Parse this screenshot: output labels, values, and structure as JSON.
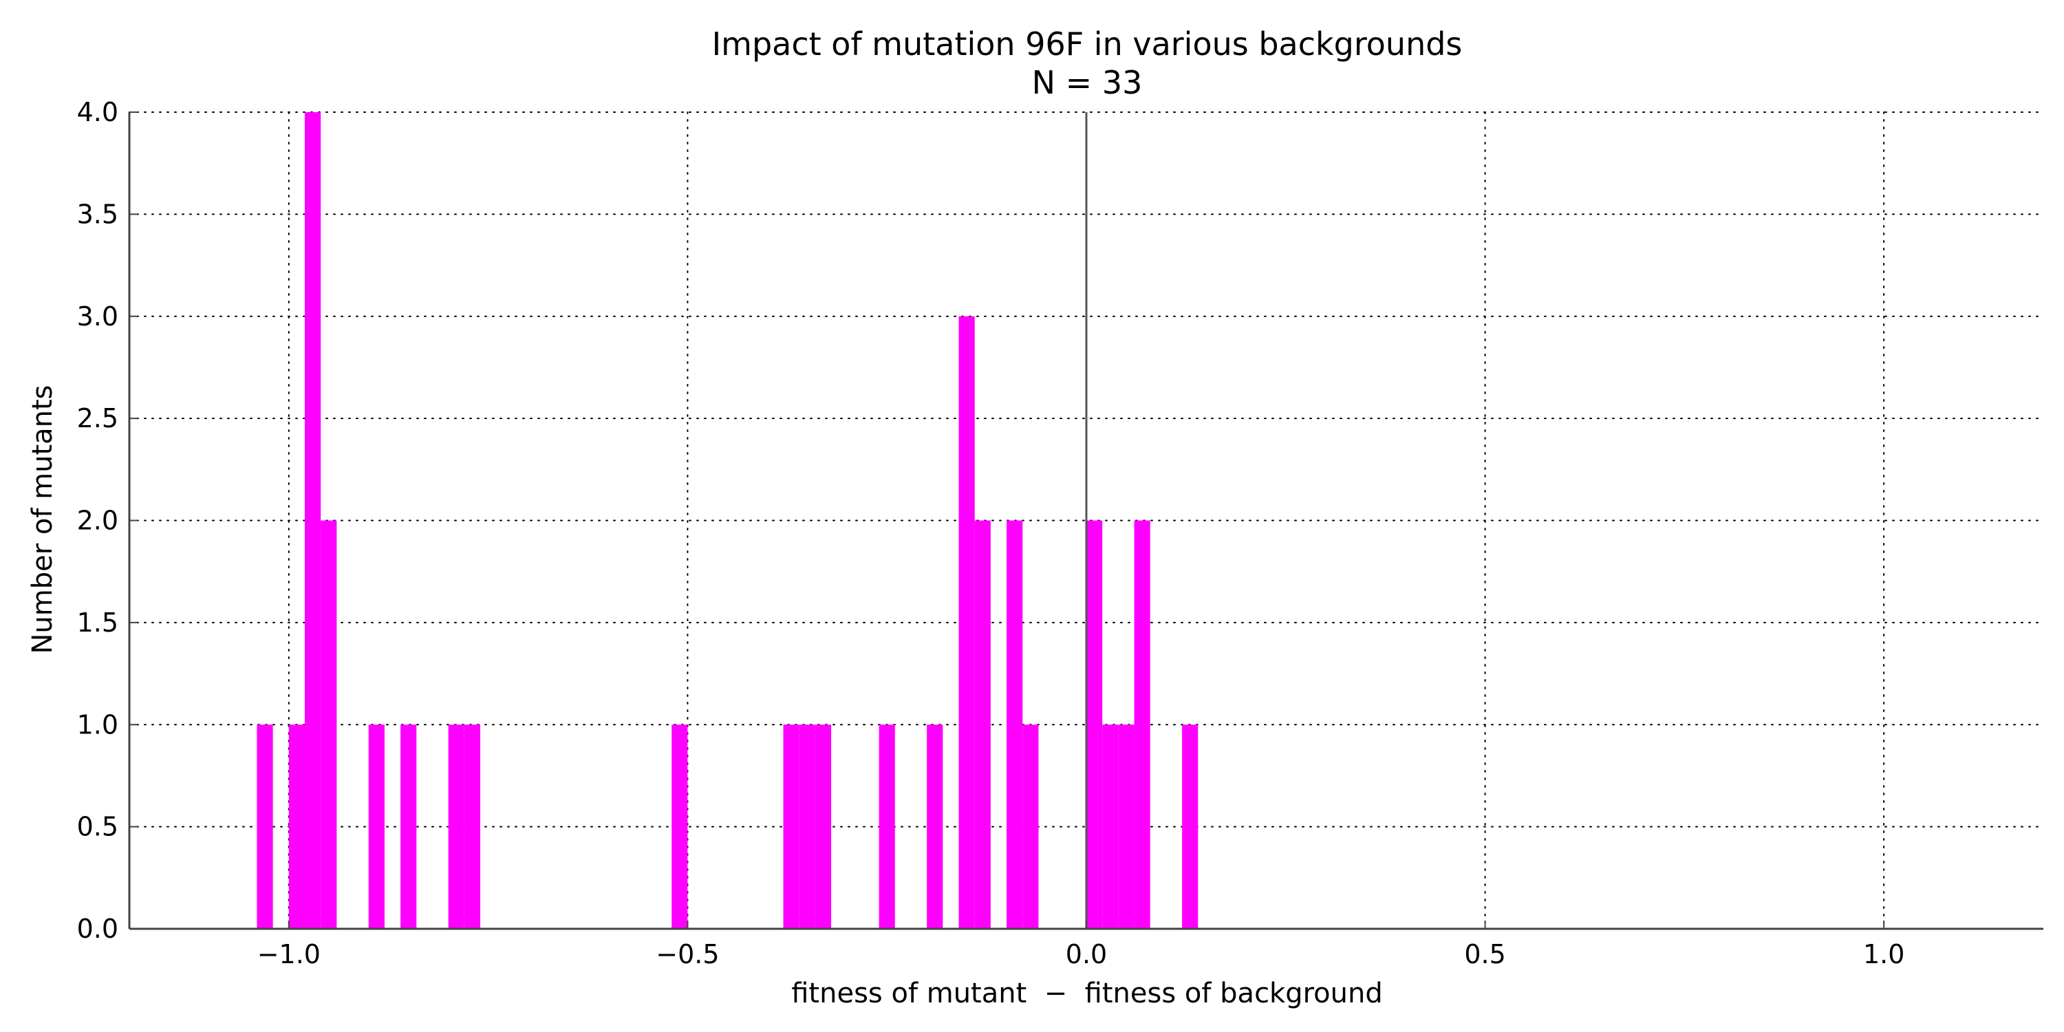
{
  "chart_data": {
    "type": "bar",
    "title": "Impact of mutation 96F in various backgrounds",
    "subtitle": "N = 33",
    "xlabel": "fitness of mutant  −  fitness of background",
    "ylabel": "Number of mutants",
    "xlim": [
      -1.2,
      1.2
    ],
    "ylim": [
      0,
      4
    ],
    "x_ticks": [
      -1.0,
      -0.5,
      0.0,
      0.5,
      1.0
    ],
    "x_tick_labels": [
      "−1.0",
      "−0.5",
      "0.0",
      "0.5",
      "1.0"
    ],
    "y_ticks": [
      0,
      0.5,
      1,
      1.5,
      2,
      2.5,
      3,
      3.5,
      4
    ],
    "y_tick_labels": [
      "0.0",
      "0.5",
      "1.0",
      "1.5",
      "2.0",
      "2.5",
      "3.0",
      "3.5",
      "4.0"
    ],
    "grid": true,
    "bin_width": 0.02,
    "bar_color": "#ff00ff",
    "zero_line": 0.0,
    "bins": [
      {
        "x": -1.04,
        "count": 1
      },
      {
        "x": -1.0,
        "count": 1
      },
      {
        "x": -0.98,
        "count": 4
      },
      {
        "x": -0.96,
        "count": 2
      },
      {
        "x": -0.9,
        "count": 1
      },
      {
        "x": -0.86,
        "count": 1
      },
      {
        "x": -0.8,
        "count": 1
      },
      {
        "x": -0.78,
        "count": 1
      },
      {
        "x": -0.52,
        "count": 1
      },
      {
        "x": -0.38,
        "count": 1
      },
      {
        "x": -0.36,
        "count": 1
      },
      {
        "x": -0.34,
        "count": 1
      },
      {
        "x": -0.26,
        "count": 1
      },
      {
        "x": -0.2,
        "count": 1
      },
      {
        "x": -0.16,
        "count": 3
      },
      {
        "x": -0.14,
        "count": 2
      },
      {
        "x": -0.1,
        "count": 2
      },
      {
        "x": -0.08,
        "count": 1
      },
      {
        "x": 0.0,
        "count": 2
      },
      {
        "x": 0.02,
        "count": 1
      },
      {
        "x": 0.04,
        "count": 1
      },
      {
        "x": 0.06,
        "count": 2
      },
      {
        "x": 0.12,
        "count": 1
      }
    ]
  }
}
